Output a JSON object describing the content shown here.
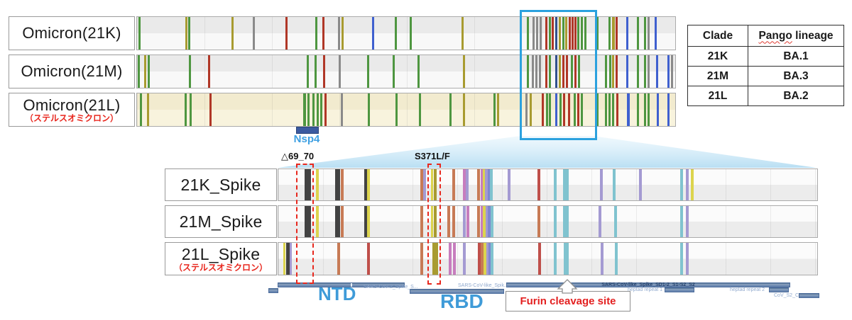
{
  "palette": {
    "g": "#4e9640",
    "o": "#a89b30",
    "r": "#b03727",
    "gy": "#8a8a8a",
    "bl": "#3f60cf",
    "nv": "#31508d",
    "bk": "#424242",
    "y": "#dcd44d",
    "sa": "#c77a55",
    "cr": "#bf4f4a",
    "mg": "#c77dbe",
    "pu": "#a49ad2",
    "bv": "#7d87cf",
    "te": "#80c3cf"
  },
  "accent_colors": {
    "highlight_box": "#2ba1de",
    "callout_red": "#e8281e",
    "domain_blue": "#3f9bd8",
    "funnel_blue": "#b9dff3"
  },
  "genome_panel": {
    "tracks": [
      {
        "label": "Omicron(21K)",
        "bg": [
          "#eaeaea",
          "#f8f8f8"
        ],
        "mutations": [
          {
            "p": 0.4,
            "c": "g"
          },
          {
            "p": 9.1,
            "c": "o"
          },
          {
            "p": 9.6,
            "c": "g"
          },
          {
            "p": 17.7,
            "c": "o"
          },
          {
            "p": 21.6,
            "c": "gy"
          },
          {
            "p": 27.7,
            "c": "r"
          },
          {
            "p": 33.2,
            "c": "g"
          },
          {
            "p": 34.6,
            "c": "r"
          },
          {
            "p": 37.5,
            "c": "gy"
          },
          {
            "p": 38.1,
            "c": "o"
          },
          {
            "p": 43.8,
            "c": "bl"
          },
          {
            "p": 48.0,
            "c": "g"
          },
          {
            "p": 50.8,
            "c": "g"
          },
          {
            "p": 60.4,
            "c": "o"
          },
          {
            "p": 72.6,
            "c": "g"
          },
          {
            "p": 73.6,
            "c": "gy"
          },
          {
            "p": 74.3,
            "c": "gy"
          },
          {
            "p": 74.9,
            "c": "gy"
          },
          {
            "p": 76.0,
            "c": "r"
          },
          {
            "p": 76.6,
            "c": "g"
          },
          {
            "p": 77.2,
            "c": "r"
          },
          {
            "p": 77.8,
            "c": "nv"
          },
          {
            "p": 78.5,
            "c": "o"
          },
          {
            "p": 79.2,
            "c": "g"
          },
          {
            "p": 79.7,
            "c": "o"
          },
          {
            "p": 80.3,
            "c": "r"
          },
          {
            "p": 80.9,
            "c": "r"
          },
          {
            "p": 81.4,
            "c": "r"
          },
          {
            "p": 81.9,
            "c": "g"
          },
          {
            "p": 82.6,
            "c": "g"
          },
          {
            "p": 83.2,
            "c": "g"
          },
          {
            "p": 85.5,
            "c": "g"
          },
          {
            "p": 87.7,
            "c": "g"
          },
          {
            "p": 88.4,
            "c": "o",
            "w": 4
          },
          {
            "p": 89.1,
            "c": "r"
          },
          {
            "p": 91.0,
            "c": "bl"
          },
          {
            "p": 93.0,
            "c": "g"
          },
          {
            "p": 94.3,
            "c": "g"
          },
          {
            "p": 95.0,
            "c": "gy"
          },
          {
            "p": 96.3,
            "c": "bl"
          }
        ]
      },
      {
        "label": "Omicron(21M)",
        "bg": [
          "#eaeaea",
          "#f8f8f8"
        ],
        "mutations": [
          {
            "p": 0.3,
            "c": "g"
          },
          {
            "p": 1.5,
            "c": "o"
          },
          {
            "p": 2.1,
            "c": "g"
          },
          {
            "p": 9.8,
            "c": "g"
          },
          {
            "p": 13.3,
            "c": "r"
          },
          {
            "p": 31.7,
            "c": "g"
          },
          {
            "p": 33.1,
            "c": "g"
          },
          {
            "p": 34.7,
            "c": "r"
          },
          {
            "p": 37.6,
            "c": "gy"
          },
          {
            "p": 42.9,
            "c": "g"
          },
          {
            "p": 47.6,
            "c": "g"
          },
          {
            "p": 52.2,
            "c": "g"
          },
          {
            "p": 60.7,
            "c": "o"
          },
          {
            "p": 72.6,
            "c": "g"
          },
          {
            "p": 73.5,
            "c": "gy"
          },
          {
            "p": 74.1,
            "c": "gy"
          },
          {
            "p": 74.8,
            "c": "gy"
          },
          {
            "p": 76.0,
            "c": "r"
          },
          {
            "p": 76.6,
            "c": "g"
          },
          {
            "p": 77.8,
            "c": "nv"
          },
          {
            "p": 78.5,
            "c": "o"
          },
          {
            "p": 79.2,
            "c": "r"
          },
          {
            "p": 79.8,
            "c": "r"
          },
          {
            "p": 80.7,
            "c": "g"
          },
          {
            "p": 81.4,
            "c": "r"
          },
          {
            "p": 82.1,
            "c": "g"
          },
          {
            "p": 87.1,
            "c": "g"
          },
          {
            "p": 87.9,
            "c": "g"
          },
          {
            "p": 88.4,
            "c": "o"
          },
          {
            "p": 89.1,
            "c": "r"
          },
          {
            "p": 91.0,
            "c": "bl"
          },
          {
            "p": 93.0,
            "c": "g"
          },
          {
            "p": 94.3,
            "c": "g"
          },
          {
            "p": 95.0,
            "c": "gy"
          },
          {
            "p": 96.6,
            "c": "bl"
          },
          {
            "p": 98.7,
            "c": "bl"
          },
          {
            "p": 99.3,
            "c": "gy"
          }
        ]
      },
      {
        "label": "Omicron(21L)",
        "sublabel": "（ステルスオミクロン）",
        "bg": [
          "#f2ebcf",
          "#f8f3dd"
        ],
        "mutations": [
          {
            "p": 0.7,
            "c": "g"
          },
          {
            "p": 2.0,
            "c": "o"
          },
          {
            "p": 9.0,
            "c": "g"
          },
          {
            "p": 9.9,
            "c": "g"
          },
          {
            "p": 13.6,
            "c": "r"
          },
          {
            "p": 31.0,
            "c": "g",
            "w": 4
          },
          {
            "p": 31.8,
            "c": "g"
          },
          {
            "p": 32.7,
            "c": "g"
          },
          {
            "p": 33.5,
            "c": "g"
          },
          {
            "p": 34.2,
            "c": "g"
          },
          {
            "p": 35.0,
            "c": "r"
          },
          {
            "p": 38.0,
            "c": "gy"
          },
          {
            "p": 43.0,
            "c": "g"
          },
          {
            "p": 48.2,
            "c": "g"
          },
          {
            "p": 52.5,
            "c": "g"
          },
          {
            "p": 58.2,
            "c": "g"
          },
          {
            "p": 60.7,
            "c": "o"
          },
          {
            "p": 66.4,
            "c": "g"
          },
          {
            "p": 67.0,
            "c": "o"
          },
          {
            "p": 72.3,
            "c": "gy"
          },
          {
            "p": 73.1,
            "c": "o"
          },
          {
            "p": 75.3,
            "c": "r"
          },
          {
            "p": 76.1,
            "c": "g"
          },
          {
            "p": 76.6,
            "c": "g"
          },
          {
            "p": 77.8,
            "c": "bl"
          },
          {
            "p": 78.6,
            "c": "g"
          },
          {
            "p": 79.3,
            "c": "r"
          },
          {
            "p": 80.2,
            "c": "r"
          },
          {
            "p": 81.3,
            "c": "g"
          },
          {
            "p": 81.9,
            "c": "r"
          },
          {
            "p": 82.6,
            "c": "g"
          },
          {
            "p": 85.5,
            "c": "g"
          },
          {
            "p": 87.1,
            "c": "g"
          },
          {
            "p": 87.7,
            "c": "g"
          },
          {
            "p": 88.4,
            "c": "g"
          },
          {
            "p": 89.2,
            "c": "r"
          },
          {
            "p": 91.2,
            "c": "bl",
            "w": 4
          },
          {
            "p": 93.0,
            "c": "g"
          },
          {
            "p": 94.3,
            "c": "g"
          },
          {
            "p": 95.0,
            "c": "g"
          },
          {
            "p": 96.7,
            "c": "bl"
          },
          {
            "p": 98.7,
            "c": "bl"
          }
        ]
      }
    ],
    "gene_marker": {
      "label": "Nsp4"
    }
  },
  "lineage_table": {
    "headers": [
      "Clade",
      [
        "Pango",
        " lineage"
      ]
    ],
    "rows": [
      [
        "21K",
        "BA.1"
      ],
      [
        "21M",
        "BA.3"
      ],
      [
        "21L",
        "BA.2"
      ]
    ]
  },
  "spike_panel": {
    "callouts": [
      {
        "label": "△69_70"
      },
      {
        "label": "S371L/F"
      }
    ],
    "tracks": [
      {
        "label": "21K_Spike",
        "bg": [
          "#fbfbfb",
          "#ececec"
        ],
        "mutations": [
          {
            "p": 5.0,
            "c": "bk",
            "w": 9
          },
          {
            "p": 7.1,
            "c": "y"
          },
          {
            "p": 10.7,
            "c": "bk",
            "w": 7
          },
          {
            "p": 11.7,
            "c": "sa"
          },
          {
            "p": 16.1,
            "c": "bk"
          },
          {
            "p": 16.6,
            "c": "y"
          },
          {
            "p": 26.5,
            "c": "sa"
          },
          {
            "p": 27.0,
            "c": "pu"
          },
          {
            "p": 28.5,
            "c": "y",
            "w": 3
          },
          {
            "p": 29.0,
            "c": "o",
            "w": 4
          },
          {
            "p": 32.4,
            "c": "sa"
          },
          {
            "p": 34.4,
            "c": "mg"
          },
          {
            "p": 34.9,
            "c": "pu"
          },
          {
            "p": 37.0,
            "c": "sa"
          },
          {
            "p": 37.7,
            "c": "mg"
          },
          {
            "p": 38.1,
            "c": "y"
          },
          {
            "p": 38.5,
            "c": "pu"
          },
          {
            "p": 39.0,
            "c": "bv"
          },
          {
            "p": 39.4,
            "c": "te",
            "w": 4
          },
          {
            "p": 42.7,
            "c": "pu"
          },
          {
            "p": 48.2,
            "c": "cr"
          },
          {
            "p": 51.3,
            "c": "te"
          },
          {
            "p": 53.0,
            "c": "te"
          },
          {
            "p": 53.5,
            "c": "te"
          },
          {
            "p": 59.8,
            "c": "pu"
          },
          {
            "p": 62.2,
            "c": "te"
          },
          {
            "p": 67.1,
            "c": "pu"
          },
          {
            "p": 74.7,
            "c": "te"
          },
          {
            "p": 75.8,
            "c": "pu"
          },
          {
            "p": 76.7,
            "c": "y"
          }
        ]
      },
      {
        "label": "21M_Spike",
        "bg": [
          "#fbfbfb",
          "#ececec"
        ],
        "mutations": [
          {
            "p": 5.0,
            "c": "bk",
            "w": 9
          },
          {
            "p": 7.1,
            "c": "y"
          },
          {
            "p": 10.7,
            "c": "bk",
            "w": 7
          },
          {
            "p": 11.7,
            "c": "sa"
          },
          {
            "p": 16.1,
            "c": "bk"
          },
          {
            "p": 16.6,
            "c": "y"
          },
          {
            "p": 26.5,
            "c": "sa"
          },
          {
            "p": 28.5,
            "c": "y",
            "w": 3
          },
          {
            "p": 29.0,
            "c": "o"
          },
          {
            "p": 31.5,
            "c": "sa"
          },
          {
            "p": 32.4,
            "c": "sa"
          },
          {
            "p": 34.4,
            "c": "pu"
          },
          {
            "p": 35.0,
            "c": "mg"
          },
          {
            "p": 37.0,
            "c": "sa"
          },
          {
            "p": 37.7,
            "c": "mg"
          },
          {
            "p": 38.1,
            "c": "y"
          },
          {
            "p": 38.6,
            "c": "pu"
          },
          {
            "p": 39.0,
            "c": "bv"
          },
          {
            "p": 39.5,
            "c": "te",
            "w": 4
          },
          {
            "p": 48.2,
            "c": "sa"
          },
          {
            "p": 51.3,
            "c": "te"
          },
          {
            "p": 53.0,
            "c": "te"
          },
          {
            "p": 53.5,
            "c": "te"
          },
          {
            "p": 59.6,
            "c": "pu"
          },
          {
            "p": 62.5,
            "c": "te"
          },
          {
            "p": 74.7,
            "c": "te"
          },
          {
            "p": 75.8,
            "c": "pu"
          }
        ]
      },
      {
        "label": "21L_Spike",
        "sublabel": "（ステルスオミクロン）",
        "bg": [
          "#fbfbfb",
          "#ececec"
        ],
        "mutations": [
          {
            "p": 1.1,
            "c": "y",
            "w": 3
          },
          {
            "p": 1.6,
            "c": "bk",
            "w": 6
          },
          {
            "p": 2.2,
            "c": "pu",
            "w": 3
          },
          {
            "p": 11.1,
            "c": "sa"
          },
          {
            "p": 16.6,
            "c": "cr"
          },
          {
            "p": 26.5,
            "c": "sa"
          },
          {
            "p": 28.7,
            "c": "o",
            "w": 8
          },
          {
            "p": 31.8,
            "c": "mg"
          },
          {
            "p": 32.5,
            "c": "mg"
          },
          {
            "p": 34.4,
            "c": "pu"
          },
          {
            "p": 37.2,
            "c": "cr"
          },
          {
            "p": 37.7,
            "c": "sa"
          },
          {
            "p": 38.2,
            "c": "y"
          },
          {
            "p": 38.7,
            "c": "pu"
          },
          {
            "p": 39.1,
            "c": "bv"
          },
          {
            "p": 39.5,
            "c": "te",
            "w": 4
          },
          {
            "p": 48.4,
            "c": "cr"
          },
          {
            "p": 51.3,
            "c": "te"
          },
          {
            "p": 53.1,
            "c": "te"
          },
          {
            "p": 53.5,
            "c": "te"
          },
          {
            "p": 59.9,
            "c": "pu"
          },
          {
            "p": 62.6,
            "c": "te"
          },
          {
            "p": 74.7,
            "c": "te"
          },
          {
            "p": 75.8,
            "c": "pu"
          }
        ]
      }
    ],
    "domains": {
      "ntd": {
        "name": "NTD",
        "tiny": "SARS-CoV-2_Spike_S..."
      },
      "rbd": {
        "name": "RBD",
        "tiny": "SARS-CoV-like_Spik..."
      },
      "s2": {
        "tiny": "SARS-CoV-like_Spike_SD1-2_S1-S2_S2"
      },
      "hr1": "heptad repeat 1",
      "hr2": "heptad repeat 2",
      "s2c": "CoV_S2_C",
      "furin": "Furin cleavage site"
    }
  }
}
